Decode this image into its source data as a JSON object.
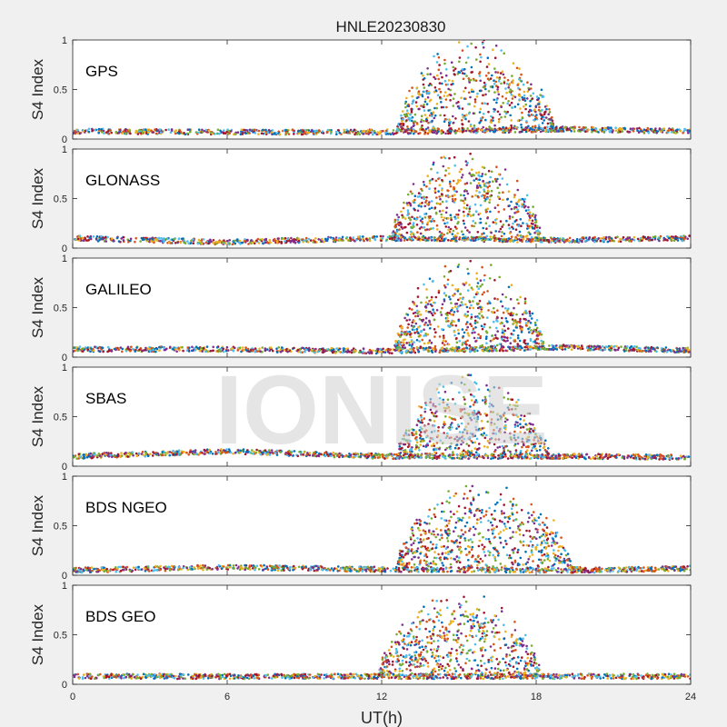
{
  "title": "HNLE20230830",
  "watermark": "IONISE",
  "chart_data": {
    "type": "scatter",
    "title": "HNLE20230830",
    "xlabel": "UT(h)",
    "ylabel": "S4 Index",
    "xlim": [
      0,
      24
    ],
    "ylim": [
      0,
      1
    ],
    "x_ticks": [
      "0",
      "6",
      "12",
      "18",
      "24"
    ],
    "y_ticks": [
      "0",
      "0.5",
      "1"
    ],
    "grid": false,
    "series_colors": [
      "#0072BD",
      "#D95319",
      "#EDB120",
      "#7E2F8E",
      "#77AC30",
      "#4DBEEE",
      "#A2142F"
    ],
    "panels": [
      {
        "label": "GPS",
        "activity_start_h": 12.6,
        "activity_end_h": 19.0,
        "peak_s4": 1.0,
        "baseline_s4": [
          [
            0,
            0.08
          ],
          [
            6,
            0.07
          ],
          [
            12,
            0.07
          ],
          [
            19,
            0.1
          ],
          [
            24,
            0.08
          ]
        ]
      },
      {
        "label": "GLONASS",
        "activity_start_h": 12.4,
        "activity_end_h": 18.5,
        "peak_s4": 1.0,
        "baseline_s4": [
          [
            0,
            0.1
          ],
          [
            6,
            0.06
          ],
          [
            12,
            0.1
          ],
          [
            19,
            0.08
          ],
          [
            24,
            0.1
          ]
        ]
      },
      {
        "label": "GALILEO",
        "activity_start_h": 12.5,
        "activity_end_h": 18.6,
        "peak_s4": 0.97,
        "baseline_s4": [
          [
            0,
            0.08
          ],
          [
            6,
            0.08
          ],
          [
            12,
            0.06
          ],
          [
            19,
            0.1
          ],
          [
            24,
            0.07
          ]
        ]
      },
      {
        "label": "SBAS",
        "activity_start_h": 12.6,
        "activity_end_h": 18.8,
        "peak_s4": 0.92,
        "baseline_s4": [
          [
            0,
            0.1
          ],
          [
            6,
            0.15
          ],
          [
            12,
            0.1
          ],
          [
            19,
            0.1
          ],
          [
            24,
            0.09
          ]
        ]
      },
      {
        "label": "BDS NGEO",
        "activity_start_h": 12.6,
        "activity_end_h": 19.7,
        "peak_s4": 0.95,
        "baseline_s4": [
          [
            0,
            0.05
          ],
          [
            6,
            0.08
          ],
          [
            12,
            0.06
          ],
          [
            20,
            0.05
          ],
          [
            24,
            0.07
          ]
        ]
      },
      {
        "label": "BDS GEO",
        "activity_start_h": 11.9,
        "activity_end_h": 18.5,
        "peak_s4": 0.92,
        "baseline_s4": [
          [
            0,
            0.08
          ],
          [
            6,
            0.08
          ],
          [
            12,
            0.08
          ],
          [
            19,
            0.08
          ],
          [
            24,
            0.08
          ]
        ]
      }
    ]
  }
}
